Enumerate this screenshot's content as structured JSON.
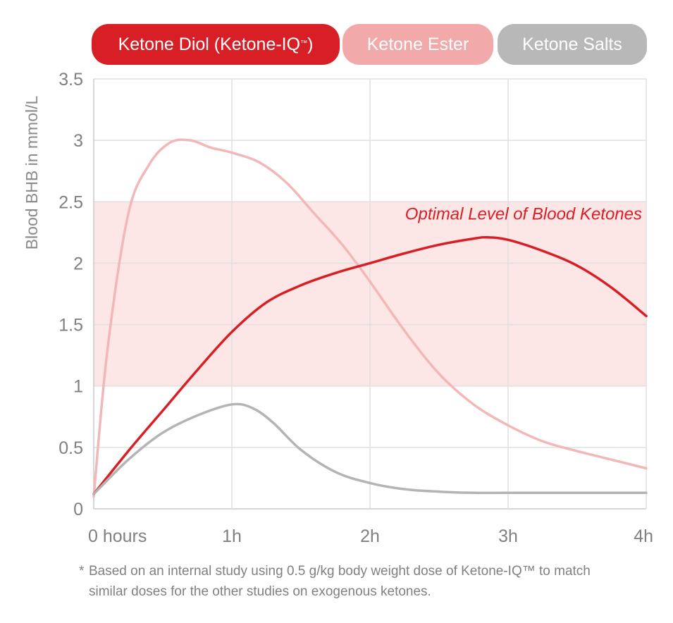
{
  "legend": {
    "items": [
      {
        "label": "Ketone Diol (Ketone-IQ",
        "suffix": "™",
        "close": ")",
        "color": "#d81f26"
      },
      {
        "label": "Ketone Ester",
        "suffix": "",
        "close": "",
        "color": "#f1a9a9"
      },
      {
        "label": "Ketone Salts",
        "suffix": "",
        "close": "",
        "color": "#b8b8b8"
      }
    ]
  },
  "chart_data": {
    "type": "line",
    "ylabel": "Blood BHB in mmol/L",
    "xlabel": "",
    "xlim": [
      0,
      4
    ],
    "ylim": [
      0,
      3.5
    ],
    "x_ticks": [
      0,
      1,
      2,
      3,
      4
    ],
    "x_tick_labels": [
      "0  hours",
      "1h",
      "2h",
      "3h",
      "4h"
    ],
    "y_ticks": [
      0,
      0.5,
      1,
      1.5,
      2,
      2.5,
      3,
      3.5
    ],
    "y_tick_labels": [
      "0",
      "0.5",
      "1",
      "1.5",
      "2",
      "2.5",
      "3",
      "3.5"
    ],
    "grid": true,
    "band": {
      "from": 1,
      "to": 2.5,
      "label": "Optimal Level of Blood Ketones",
      "color": "#fde6e6"
    },
    "series": [
      {
        "name": "Ketone Ester",
        "color": "#f2b8b8",
        "x": [
          0,
          0.1,
          0.25,
          0.4,
          0.55,
          0.7,
          0.85,
          1.0,
          1.2,
          1.4,
          1.6,
          1.8,
          2.0,
          2.25,
          2.5,
          2.75,
          3.0,
          3.25,
          3.5,
          3.75,
          4.0
        ],
        "y": [
          0.1,
          1.3,
          2.4,
          2.8,
          2.98,
          3.0,
          2.94,
          2.9,
          2.82,
          2.65,
          2.4,
          2.15,
          1.85,
          1.45,
          1.1,
          0.85,
          0.68,
          0.55,
          0.47,
          0.4,
          0.33
        ]
      },
      {
        "name": "Ketone Diol (Ketone-IQ™)",
        "color": "#d81f26",
        "x": [
          0,
          0.25,
          0.5,
          0.75,
          1.0,
          1.25,
          1.5,
          1.75,
          2.0,
          2.25,
          2.5,
          2.75,
          2.85,
          3.0,
          3.25,
          3.5,
          3.75,
          4.0
        ],
        "y": [
          0.12,
          0.47,
          0.8,
          1.13,
          1.44,
          1.68,
          1.82,
          1.92,
          2.0,
          2.08,
          2.15,
          2.2,
          2.21,
          2.19,
          2.1,
          1.98,
          1.8,
          1.57
        ]
      },
      {
        "name": "Ketone Salts",
        "color": "#b4b4b4",
        "x": [
          0,
          0.25,
          0.5,
          0.75,
          1.0,
          1.15,
          1.3,
          1.5,
          1.75,
          2.0,
          2.25,
          2.5,
          2.75,
          3.0,
          3.5,
          4.0
        ],
        "y": [
          0.12,
          0.4,
          0.62,
          0.76,
          0.85,
          0.82,
          0.7,
          0.48,
          0.3,
          0.21,
          0.16,
          0.14,
          0.13,
          0.13,
          0.13,
          0.13
        ]
      }
    ]
  },
  "footnote": {
    "marker": "*",
    "line1": "Based on an internal study using 0.5 g/kg body weight dose of Ketone-IQ™ to match",
    "line2": "similar doses for the other studies on exogenous ketones."
  }
}
